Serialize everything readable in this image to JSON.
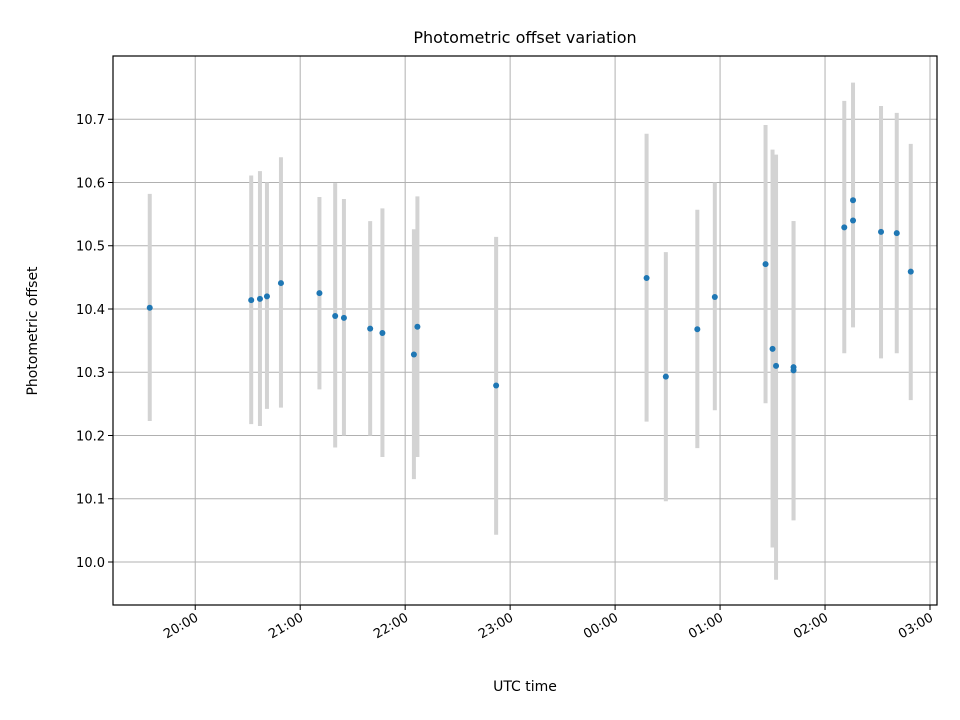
{
  "chart_data": {
    "type": "scatter",
    "title": "Photometric offset variation",
    "xlabel": "UTC time",
    "ylabel": "Photometric offset",
    "xlim": [
      "19:13",
      "03:04"
    ],
    "ylim": [
      9.932,
      10.8
    ],
    "x_ticks": [
      "20:00",
      "21:00",
      "22:00",
      "23:00",
      "00:00",
      "01:00",
      "02:00",
      "03:00"
    ],
    "y_ticks": [
      "10.0",
      "10.1",
      "10.2",
      "10.3",
      "10.4",
      "10.5",
      "10.6",
      "10.7"
    ],
    "grid": true,
    "marker_color": "#1f77b4",
    "errorbar_color": "#d3d3d3",
    "points": [
      {
        "x": "19:34",
        "y": 10.402,
        "low": 10.223,
        "high": 10.582
      },
      {
        "x": "20:32",
        "y": 10.414,
        "low": 10.218,
        "high": 10.611
      },
      {
        "x": "20:37",
        "y": 10.416,
        "low": 10.215,
        "high": 10.618
      },
      {
        "x": "20:41",
        "y": 10.42,
        "low": 10.242,
        "high": 10.6
      },
      {
        "x": "20:49",
        "y": 10.441,
        "low": 10.244,
        "high": 10.64
      },
      {
        "x": "21:11",
        "y": 10.425,
        "low": 10.273,
        "high": 10.577
      },
      {
        "x": "21:20",
        "y": 10.389,
        "low": 10.181,
        "high": 10.599
      },
      {
        "x": "21:25",
        "y": 10.386,
        "low": 10.2,
        "high": 10.574
      },
      {
        "x": "21:40",
        "y": 10.369,
        "low": 10.2,
        "high": 10.539
      },
      {
        "x": "21:47",
        "y": 10.362,
        "low": 10.166,
        "high": 10.559
      },
      {
        "x": "22:05",
        "y": 10.328,
        "low": 10.131,
        "high": 10.526
      },
      {
        "x": "22:07",
        "y": 10.372,
        "low": 10.166,
        "high": 10.578
      },
      {
        "x": "22:52",
        "y": 10.279,
        "low": 10.043,
        "high": 10.514
      },
      {
        "x": "00:18",
        "y": 10.449,
        "low": 10.222,
        "high": 10.677
      },
      {
        "x": "00:29",
        "y": 10.293,
        "low": 10.096,
        "high": 10.49
      },
      {
        "x": "00:47",
        "y": 10.368,
        "low": 10.18,
        "high": 10.557
      },
      {
        "x": "00:57",
        "y": 10.419,
        "low": 10.24,
        "high": 10.6
      },
      {
        "x": "01:26",
        "y": 10.471,
        "low": 10.251,
        "high": 10.691
      },
      {
        "x": "01:30",
        "y": 10.337,
        "low": 10.023,
        "high": 10.652
      },
      {
        "x": "01:32",
        "y": 10.31,
        "low": 9.972,
        "high": 10.644
      },
      {
        "x": "01:42",
        "y": 10.308,
        "low": 10.066,
        "high": 10.539
      },
      {
        "x": "01:42",
        "y": 10.303,
        "low": 10.066,
        "high": 10.539
      },
      {
        "x": "02:11",
        "y": 10.529,
        "low": 10.33,
        "high": 10.729
      },
      {
        "x": "02:16",
        "y": 10.572,
        "low": 10.386,
        "high": 10.758
      },
      {
        "x": "02:16",
        "y": 10.54,
        "low": 10.371,
        "high": 10.709
      },
      {
        "x": "02:32",
        "y": 10.522,
        "low": 10.322,
        "high": 10.721
      },
      {
        "x": "02:41",
        "y": 10.52,
        "low": 10.33,
        "high": 10.71
      },
      {
        "x": "02:49",
        "y": 10.459,
        "low": 10.256,
        "high": 10.661
      }
    ]
  }
}
